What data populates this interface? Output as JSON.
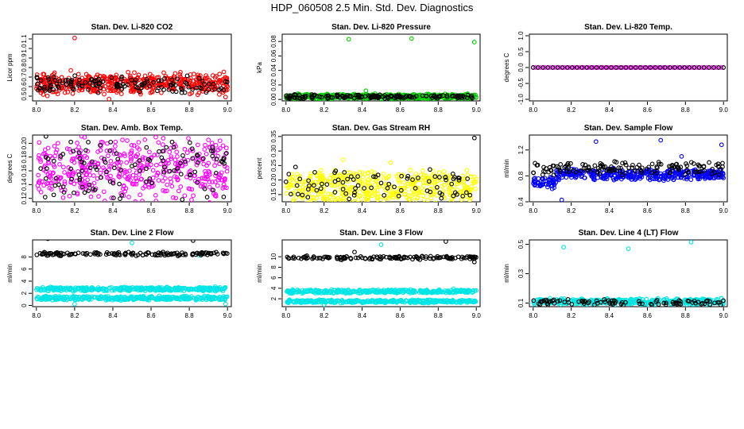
{
  "figure": {
    "title": "HDP_060508  2.5 Min. Std. Dev. Diagnostics"
  },
  "chart_data": [
    {
      "id": "co2",
      "type": "scatter",
      "title": "Stan. Dev. Li-820 CO2",
      "xlabel": "",
      "ylabel": "Licor ppm",
      "xlim": [
        7.98,
        9.02
      ],
      "ylim": [
        0.45,
        1.15
      ],
      "xticks": [
        "8.0",
        "8.2",
        "8.4",
        "8.6",
        "8.8",
        "9.0"
      ],
      "yticks": [
        "0.5",
        "0.6",
        "0.7",
        "0.8",
        "0.9",
        "1.0",
        "1.1"
      ],
      "series": [
        {
          "color": "#ff0000",
          "n": 500,
          "base": 0.63,
          "spread": 0.13,
          "seed": 11,
          "outliers": [
            [
              8.2,
              1.11
            ],
            [
              8.38,
              0.47
            ],
            [
              8.99,
              0.49
            ],
            [
              8.18,
              0.77
            ]
          ]
        },
        {
          "color": "#000000",
          "n": 130,
          "base": 0.62,
          "spread": 0.1,
          "seed": 12,
          "outliers": []
        }
      ]
    },
    {
      "id": "pressure",
      "type": "scatter",
      "title": "Stan. Dev. Li-820 Pressure",
      "xlabel": "",
      "ylabel": "kPa",
      "xlim": [
        7.98,
        9.02
      ],
      "ylim": [
        -0.002,
        0.09
      ],
      "xticks": [
        "8.0",
        "8.2",
        "8.4",
        "8.6",
        "8.8",
        "9.0"
      ],
      "yticks": [
        "0.00",
        "0.02",
        "0.04",
        "0.06",
        "0.08"
      ],
      "series": [
        {
          "color": "#00cc00",
          "n": 500,
          "base": 0.004,
          "spread": 0.004,
          "seed": 21,
          "outliers": [
            [
              8.33,
              0.083
            ],
            [
              8.66,
              0.084
            ],
            [
              8.99,
              0.079
            ],
            [
              8.42,
              0.012
            ]
          ]
        },
        {
          "color": "#000000",
          "n": 150,
          "base": 0.004,
          "spread": 0.003,
          "seed": 22,
          "outliers": []
        }
      ]
    },
    {
      "id": "licortemp",
      "type": "scatter",
      "title": "Stan. Dev. Li-820 Temp.",
      "xlabel": "",
      "ylabel": "degrees C",
      "xlim": [
        7.98,
        9.02
      ],
      "ylim": [
        -1.05,
        1.05
      ],
      "xticks": [
        "8.0",
        "8.2",
        "8.4",
        "8.6",
        "8.8",
        "9.0"
      ],
      "yticks": [
        "-1.0",
        "-0.5",
        "0.0",
        "0.5",
        "1.0"
      ],
      "series": [
        {
          "color": "#ff00ff",
          "n": 80,
          "base": 0.0,
          "spread": 0.0,
          "seed": 31,
          "outliers": []
        },
        {
          "color": "#000000",
          "n": 40,
          "base": 0.0,
          "spread": 0.0,
          "seed": 32,
          "outliers": []
        }
      ]
    },
    {
      "id": "ambbox",
      "type": "scatter",
      "title": "Stan. Dev. Amb. Box Temp.",
      "xlabel": "",
      "ylabel": "degrees C",
      "xlim": [
        7.98,
        9.02
      ],
      "ylim": [
        0.115,
        0.212
      ],
      "xticks": [
        "8.0",
        "8.2",
        "8.4",
        "8.6",
        "8.8",
        "9.0"
      ],
      "yticks": [
        "0.12",
        "0.14",
        "0.16",
        "0.18",
        "0.20"
      ],
      "series": [
        {
          "color": "#ff00ff",
          "n": 450,
          "base": 0.162,
          "spread": 0.05,
          "seed": 41,
          "outliers": [
            [
              8.45,
              0.205
            ],
            [
              8.14,
              0.121
            ],
            [
              8.9,
              0.205
            ]
          ]
        },
        {
          "color": "#000000",
          "n": 110,
          "base": 0.16,
          "spread": 0.05,
          "seed": 42,
          "outliers": [
            [
              8.05,
              0.21
            ],
            [
              8.18,
              0.202
            ],
            [
              8.71,
              0.202
            ]
          ]
        }
      ]
    },
    {
      "id": "rh",
      "type": "scatter",
      "title": "Stan. Dev. Gas Stream RH",
      "xlabel": "",
      "ylabel": "percent",
      "xlim": [
        7.98,
        9.02
      ],
      "ylim": [
        0.125,
        0.355
      ],
      "xticks": [
        "8.0",
        "8.2",
        "8.4",
        "8.6",
        "8.8",
        "9.0"
      ],
      "yticks": [
        "0.15",
        "0.20",
        "0.25",
        "0.30",
        "0.35"
      ],
      "series": [
        {
          "color": "#ffff00",
          "n": 500,
          "base": 0.175,
          "spread": 0.065,
          "seed": 51,
          "outliers": [
            [
              8.3,
              0.27
            ],
            [
              8.55,
              0.26
            ]
          ]
        },
        {
          "color": "#000000",
          "n": 80,
          "base": 0.185,
          "spread": 0.06,
          "seed": 52,
          "outliers": [
            [
              8.99,
              0.345
            ],
            [
              8.05,
              0.245
            ]
          ]
        }
      ]
    },
    {
      "id": "sampleflow",
      "type": "scatter",
      "title": "Stan. Dev. Sample Flow",
      "xlabel": "",
      "ylabel": "ml/min",
      "xlim": [
        7.98,
        9.02
      ],
      "ylim": [
        0.4,
        1.43
      ],
      "xticks": [
        "8.0",
        "8.2",
        "8.4",
        "8.6",
        "8.8",
        "9.0"
      ],
      "yticks": [
        "0.4",
        "0.8",
        "1.2"
      ],
      "series": [
        {
          "color": "#0000ff",
          "n": 450,
          "base": 0.8,
          "spread": 0.1,
          "seed": 61,
          "outliers": [
            [
              8.33,
              1.33
            ],
            [
              8.67,
              1.35
            ],
            [
              8.99,
              1.28
            ],
            [
              8.15,
              0.43
            ],
            [
              8.1,
              0.6
            ],
            [
              8.78,
              1.1
            ]
          ]
        },
        {
          "color": "#000000",
          "n": 140,
          "base": 0.92,
          "spread": 0.12,
          "seed": 62,
          "outliers": []
        }
      ]
    },
    {
      "id": "line2",
      "type": "scatter",
      "title": "Stan. Dev. Line 2 Flow",
      "xlabel": "",
      "ylabel": "ml/min",
      "xlim": [
        7.98,
        9.02
      ],
      "ylim": [
        -0.2,
        10.8
      ],
      "xticks": [
        "8.0",
        "8.2",
        "8.4",
        "8.6",
        "8.8",
        "9.0"
      ],
      "yticks": [
        "0",
        "2",
        "4",
        "6",
        "8"
      ],
      "series": [
        {
          "color": "#00e5e5",
          "n": 350,
          "base": 2.7,
          "spread": 0.4,
          "seed": 71,
          "outliers": [
            [
              8.5,
              10.3
            ],
            [
              8.85,
              8.3
            ]
          ]
        },
        {
          "color": "#00e5e5",
          "n": 350,
          "base": 1.2,
          "spread": 0.4,
          "seed": 73,
          "outliers": [
            [
              8.2,
              0.2
            ],
            [
              8.99,
              0.25
            ]
          ]
        },
        {
          "color": "#000000",
          "n": 140,
          "base": 8.5,
          "spread": 0.35,
          "seed": 72,
          "outliers": [
            [
              8.82,
              10.7
            ],
            [
              8.06,
              11.0
            ]
          ]
        }
      ]
    },
    {
      "id": "line3",
      "type": "scatter",
      "title": "Stan. Dev. Line 3 Flow",
      "xlabel": "",
      "ylabel": "ml/min",
      "xlim": [
        7.98,
        9.02
      ],
      "ylim": [
        0.5,
        13.2
      ],
      "xticks": [
        "8.0",
        "8.2",
        "8.4",
        "8.6",
        "8.8",
        "9.0"
      ],
      "yticks": [
        "2",
        "4",
        "6",
        "8",
        "10"
      ],
      "series": [
        {
          "color": "#00e5e5",
          "n": 350,
          "base": 3.4,
          "spread": 0.4,
          "seed": 81,
          "outliers": [
            [
              8.5,
              12.3
            ],
            [
              8.88,
              3.9
            ]
          ]
        },
        {
          "color": "#00e5e5",
          "n": 350,
          "base": 1.5,
          "spread": 0.35,
          "seed": 83,
          "outliers": [
            [
              8.2,
              0.9
            ]
          ]
        },
        {
          "color": "#000000",
          "n": 140,
          "base": 9.8,
          "spread": 0.4,
          "seed": 82,
          "outliers": [
            [
              8.84,
              12.9
            ],
            [
              8.36,
              10.9
            ],
            [
              8.99,
              9.0
            ]
          ]
        }
      ]
    },
    {
      "id": "line4",
      "type": "scatter",
      "title": "Stan. Dev. Line 4 (LT) Flow",
      "xlabel": "",
      "ylabel": "ml/min",
      "xlim": [
        7.98,
        9.02
      ],
      "ylim": [
        0.075,
        0.53
      ],
      "xticks": [
        "8.0",
        "8.2",
        "8.4",
        "8.6",
        "8.8",
        "9.0"
      ],
      "yticks": [
        "0.1",
        "0.3",
        "0.5"
      ],
      "series": [
        {
          "color": "#00e5e5",
          "n": 380,
          "base": 0.11,
          "spread": 0.025,
          "seed": 91,
          "outliers": [
            [
              8.16,
              0.48
            ],
            [
              8.5,
              0.47
            ],
            [
              8.83,
              0.515
            ],
            [
              8.99,
              0.13
            ]
          ]
        },
        {
          "color": "#000000",
          "n": 90,
          "base": 0.105,
          "spread": 0.022,
          "seed": 92,
          "outliers": []
        }
      ]
    }
  ]
}
